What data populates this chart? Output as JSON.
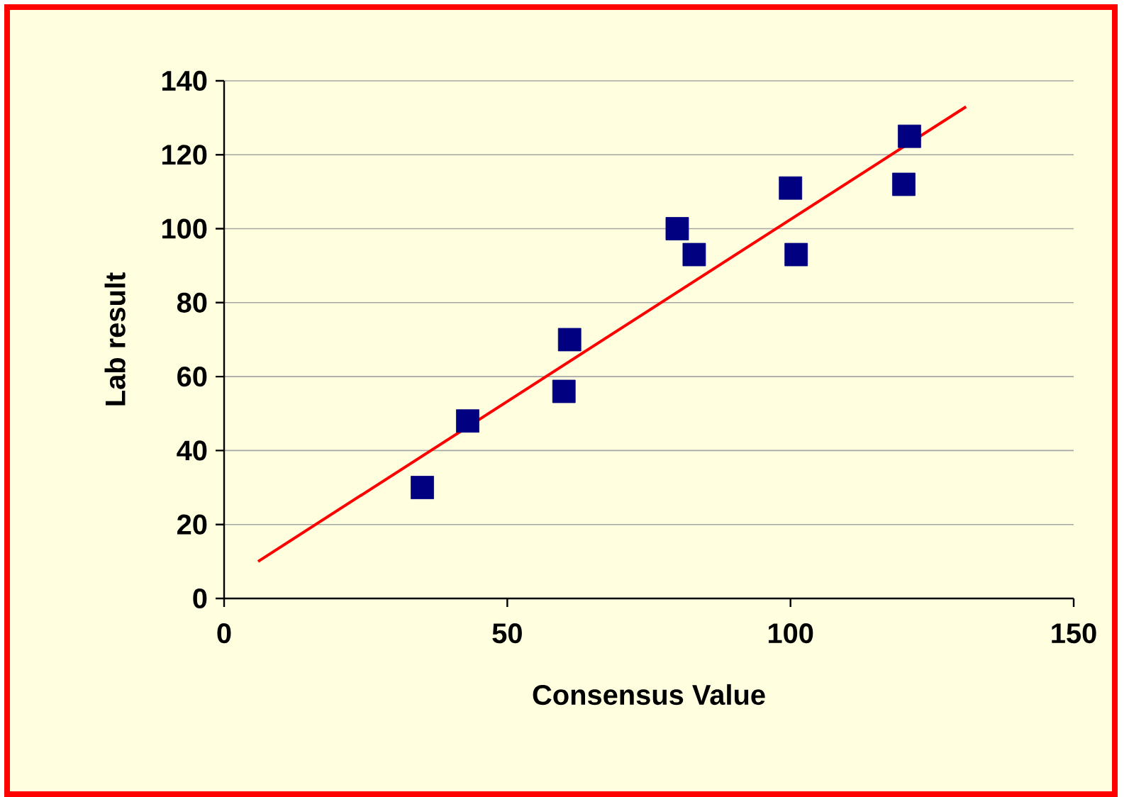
{
  "chart_data": {
    "type": "scatter",
    "xlabel": "Consensus Value",
    "ylabel": "Lab result",
    "xlim": [
      0,
      150
    ],
    "ylim": [
      0,
      140
    ],
    "xticks": [
      0,
      50,
      100,
      150
    ],
    "yticks": [
      0,
      20,
      40,
      60,
      80,
      100,
      120,
      140
    ],
    "grid": "y",
    "marker": "square",
    "series": [
      {
        "color": "#000080",
        "x": [
          35,
          43,
          60,
          61,
          80,
          83,
          100,
          101,
          120,
          121
        ],
        "values": [
          30,
          48,
          56,
          70,
          100,
          93,
          111,
          93,
          112,
          125
        ]
      },
      {
        "type": "line",
        "color": "#ff0000",
        "marker": "none",
        "x": [
          6,
          131
        ],
        "values": [
          10,
          133
        ]
      }
    ]
  }
}
